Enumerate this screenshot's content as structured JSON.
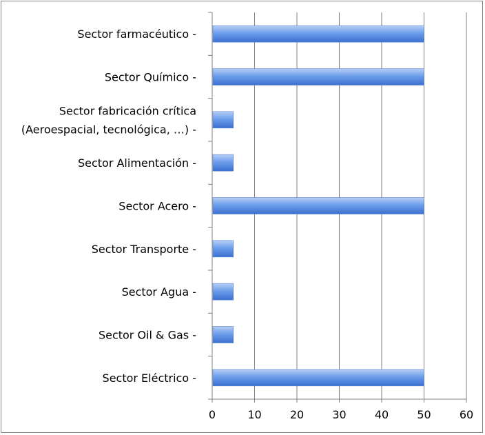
{
  "chart_data": {
    "type": "bar",
    "orientation": "horizontal",
    "categories": [
      [
        "Sector farmacéutico"
      ],
      [
        "Sector Químico"
      ],
      [
        "Sector fabricación crítica",
        "(Aeroespacial, tecnológica, …)"
      ],
      [
        "Sector Alimentación"
      ],
      [
        "Sector Acero"
      ],
      [
        "Sector Transporte"
      ],
      [
        "Sector Agua"
      ],
      [
        "Sector Oil & Gas"
      ],
      [
        "Sector Eléctrico"
      ]
    ],
    "values": [
      50,
      50,
      5,
      5,
      50,
      5,
      5,
      5,
      50
    ],
    "xlim": [
      0,
      60
    ],
    "xticks": [
      0,
      10,
      20,
      30,
      40,
      50,
      60
    ],
    "grid": "vertical",
    "bar_color": "#6d9eeb",
    "bar_color_light": "#b7cff5",
    "bar_color_dark": "#3a6fd0"
  }
}
